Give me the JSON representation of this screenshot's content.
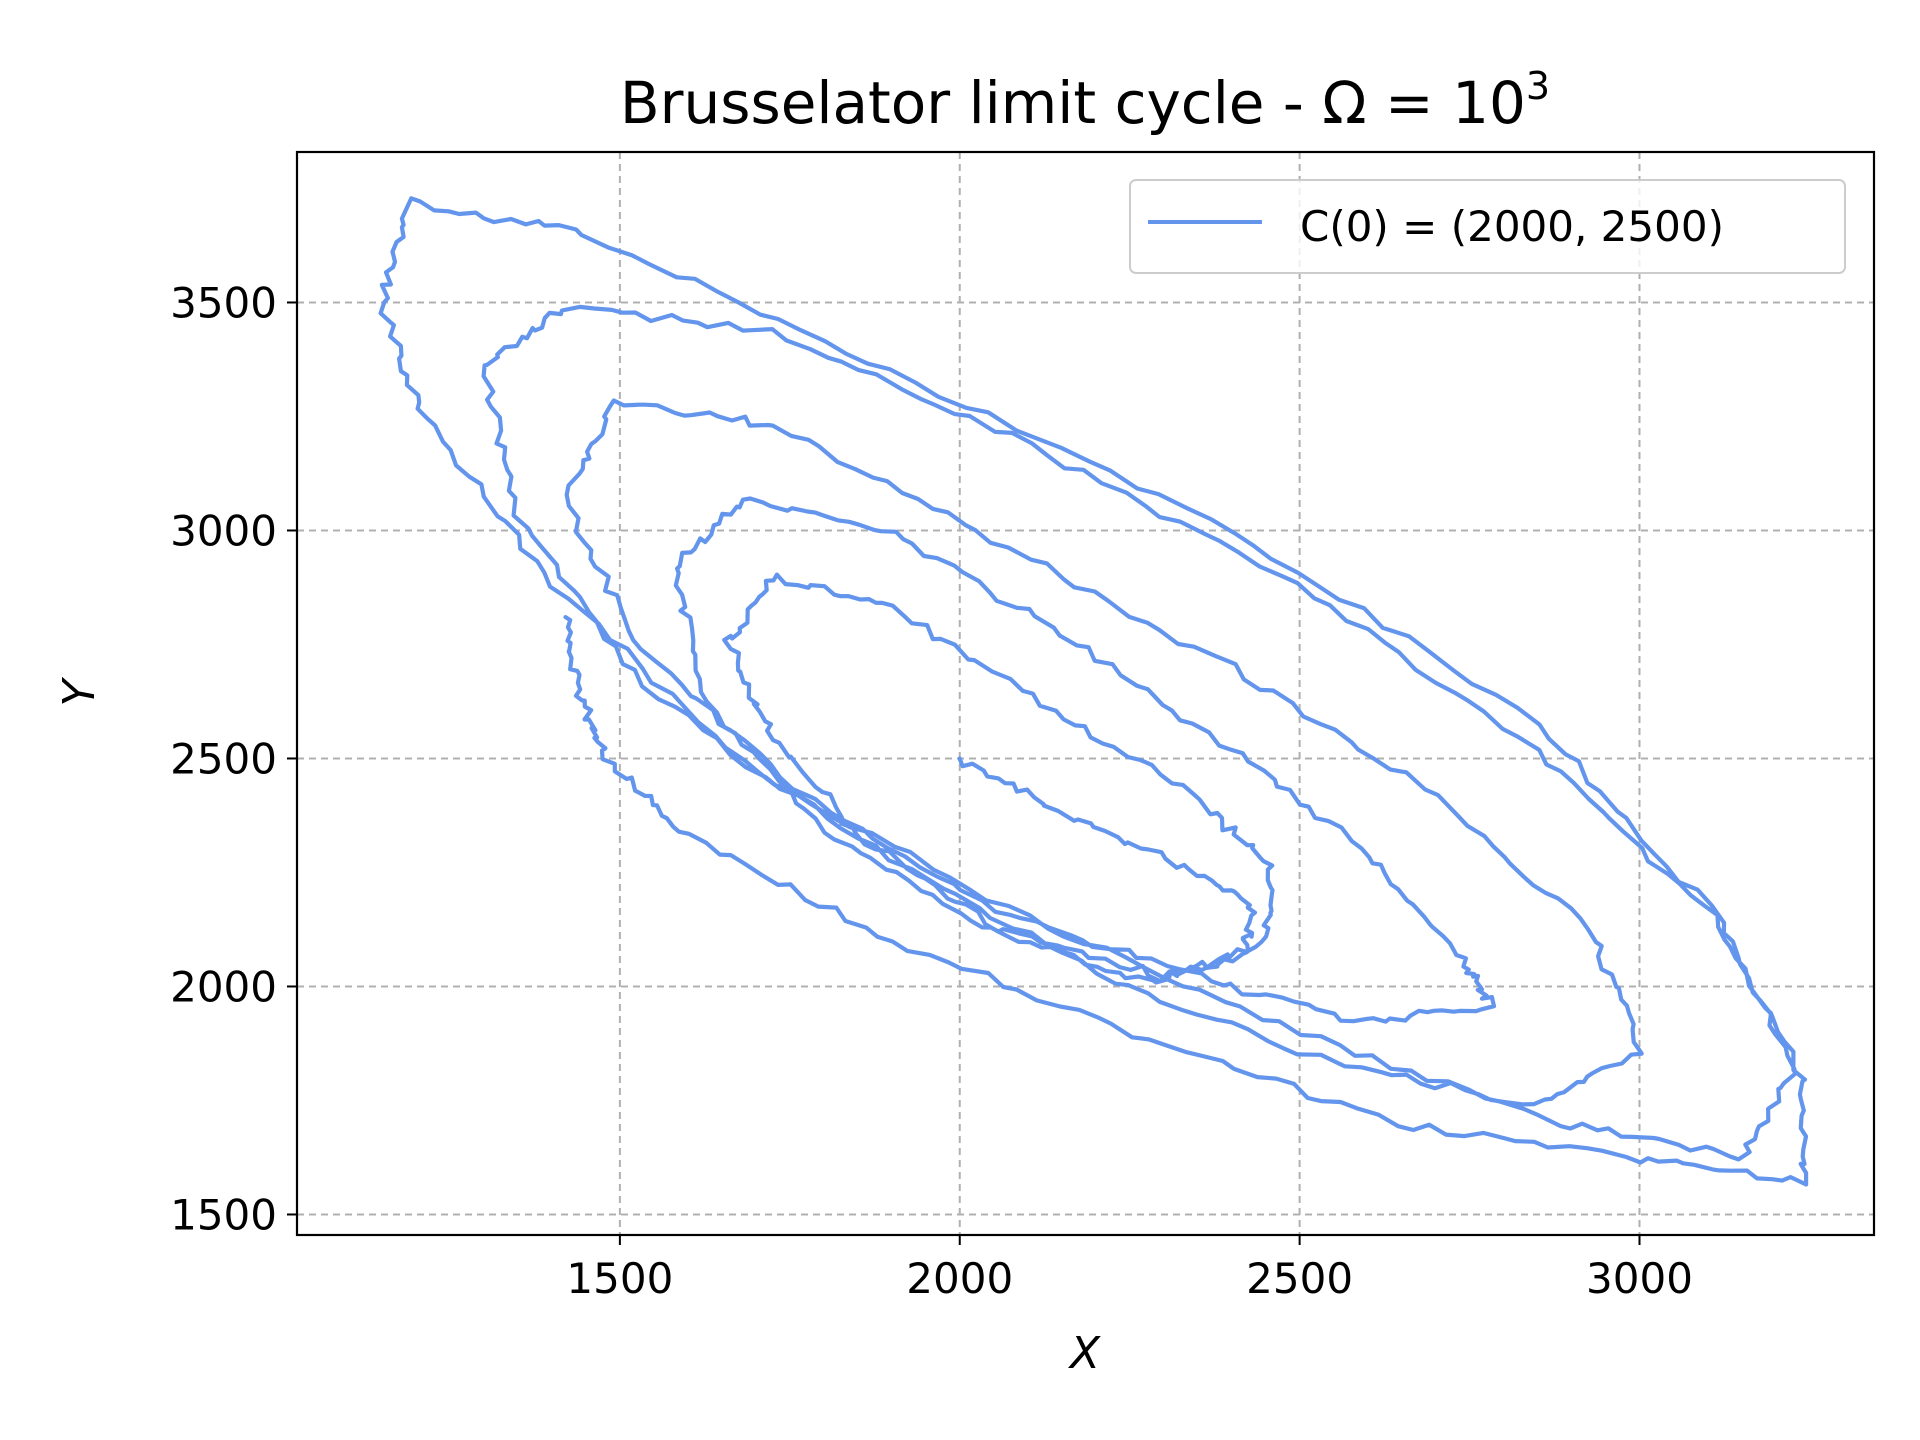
{
  "chart_data": {
    "type": "line",
    "title_text": "Brusselator limit cycle - ",
    "title_math": "Ω = 10",
    "title_exp": "3",
    "xlabel": "X",
    "ylabel": "Y",
    "xlim": [
      1025,
      3345
    ],
    "ylim": [
      1455,
      3830
    ],
    "xticks": [
      1500,
      2000,
      2500,
      3000
    ],
    "yticks": [
      1500,
      2000,
      2500,
      3000,
      3500
    ],
    "grid": true,
    "legend_position": "top-right",
    "color": "#6495ED",
    "series": [
      {
        "name": "C(0) = (2000, 2500)",
        "points": [
          [
            2000,
            2500
          ],
          [
            2150,
            2380
          ],
          [
            2330,
            2260
          ],
          [
            2430,
            2180
          ],
          [
            2420,
            2070
          ],
          [
            2300,
            2020
          ],
          [
            2050,
            2130
          ],
          [
            1850,
            2330
          ],
          [
            1720,
            2560
          ],
          [
            1660,
            2750
          ],
          [
            1720,
            2900
          ],
          [
            1900,
            2830
          ],
          [
            2120,
            2620
          ],
          [
            2340,
            2420
          ],
          [
            2460,
            2260
          ],
          [
            2450,
            2090
          ],
          [
            2280,
            2010
          ],
          [
            2050,
            2120
          ],
          [
            1800,
            2340
          ],
          [
            1620,
            2640
          ],
          [
            1580,
            2920
          ],
          [
            1680,
            3070
          ],
          [
            1900,
            3000
          ],
          [
            2150,
            2770
          ],
          [
            2400,
            2520
          ],
          [
            2600,
            2290
          ],
          [
            2740,
            2060
          ],
          [
            2780,
            1960
          ],
          [
            2600,
            1920
          ],
          [
            2350,
            2020
          ],
          [
            2050,
            2170
          ],
          [
            1750,
            2440
          ],
          [
            1520,
            2760
          ],
          [
            1420,
            3070
          ],
          [
            1490,
            3280
          ],
          [
            1730,
            3230
          ],
          [
            2050,
            2980
          ],
          [
            2400,
            2700
          ],
          [
            2700,
            2420
          ],
          [
            2930,
            2120
          ],
          [
            3000,
            1860
          ],
          [
            2850,
            1740
          ],
          [
            2550,
            1830
          ],
          [
            2200,
            2030
          ],
          [
            1850,
            2320
          ],
          [
            1530,
            2660
          ],
          [
            1350,
            3040
          ],
          [
            1300,
            3360
          ],
          [
            1420,
            3490
          ],
          [
            1720,
            3440
          ],
          [
            2100,
            3190
          ],
          [
            2500,
            2880
          ],
          [
            2850,
            2520
          ],
          [
            3110,
            2150
          ],
          [
            3230,
            1820
          ],
          [
            3150,
            1630
          ],
          [
            2880,
            1700
          ],
          [
            2500,
            1900
          ],
          [
            2100,
            2150
          ],
          [
            1700,
            2470
          ],
          [
            1400,
            2880
          ],
          [
            1210,
            3250
          ],
          [
            1150,
            3500
          ],
          [
            1190,
            3720
          ],
          [
            1450,
            3650
          ],
          [
            1900,
            3350
          ],
          [
            2400,
            3000
          ],
          [
            2850,
            2580
          ],
          [
            3120,
            2140
          ],
          [
            3240,
            1800
          ],
          [
            3240,
            1570
          ],
          [
            3000,
            1620
          ],
          [
            2640,
            1700
          ],
          [
            2280,
            1880
          ],
          [
            1900,
            2100
          ],
          [
            1600,
            2330
          ],
          [
            1480,
            2500
          ],
          [
            1440,
            2640
          ],
          [
            1420,
            2810
          ]
        ]
      }
    ]
  }
}
